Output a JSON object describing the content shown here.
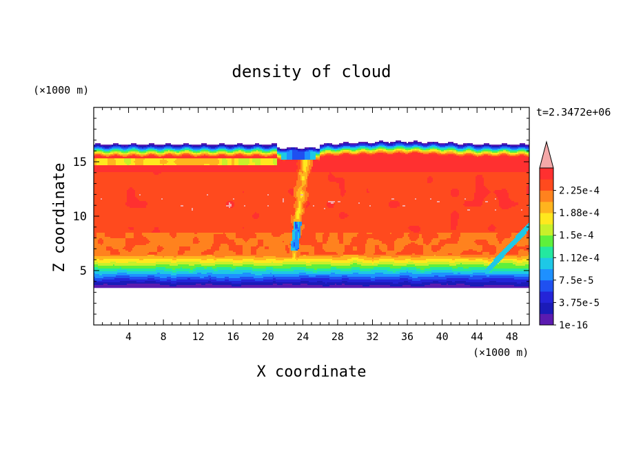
{
  "chart_data": {
    "type": "heatmap",
    "subtype": "filled-contour",
    "title": "density of cloud",
    "xlabel": "X coordinate",
    "ylabel": "Z coordinate",
    "x_unit": "(×1000 m)",
    "y_unit": "(×1000 m)",
    "time_label": "t=2.3472e+06",
    "xlim": [
      0,
      50
    ],
    "ylim": [
      0,
      20
    ],
    "x_ticks": [
      4,
      8,
      12,
      16,
      20,
      24,
      28,
      32,
      36,
      40,
      44,
      48
    ],
    "y_ticks": [
      5,
      10,
      15
    ],
    "colorbar": {
      "levels": [
        1e-16,
        1.875e-05,
        3.75e-05,
        5.625e-05,
        7.5e-05,
        9.375e-05,
        0.0001125,
        0.00013125,
        0.00015,
        0.00016875,
        0.0001875,
        0.00020625,
        0.000225,
        0.00024375
      ],
      "tick_labels": [
        "1e-16",
        "3.75e-5",
        "7.5e-5",
        "1.12e-4",
        "1.5e-4",
        "1.88e-4",
        "2.25e-4"
      ],
      "tick_level_index": [
        0,
        2,
        4,
        6,
        8,
        10,
        12
      ],
      "colors": [
        "#5b1bb0",
        "#1b1bb8",
        "#2424d8",
        "#1f50f0",
        "#1e90ff",
        "#1ec8e6",
        "#23e8a0",
        "#5ef03c",
        "#c8f02a",
        "#ffe81e",
        "#ffb41e",
        "#ff821e",
        "#ff4a1e",
        "#ff3030"
      ],
      "overflow_color": "#f4a8a8",
      "extend": "max"
    },
    "field_description": "cloud layer between z~3.3 and z~16.7 km; dense core 9-14 km; vertical plume near x~23-24 km; sloped feature near x~44-49 km at z~4-8 km"
  }
}
